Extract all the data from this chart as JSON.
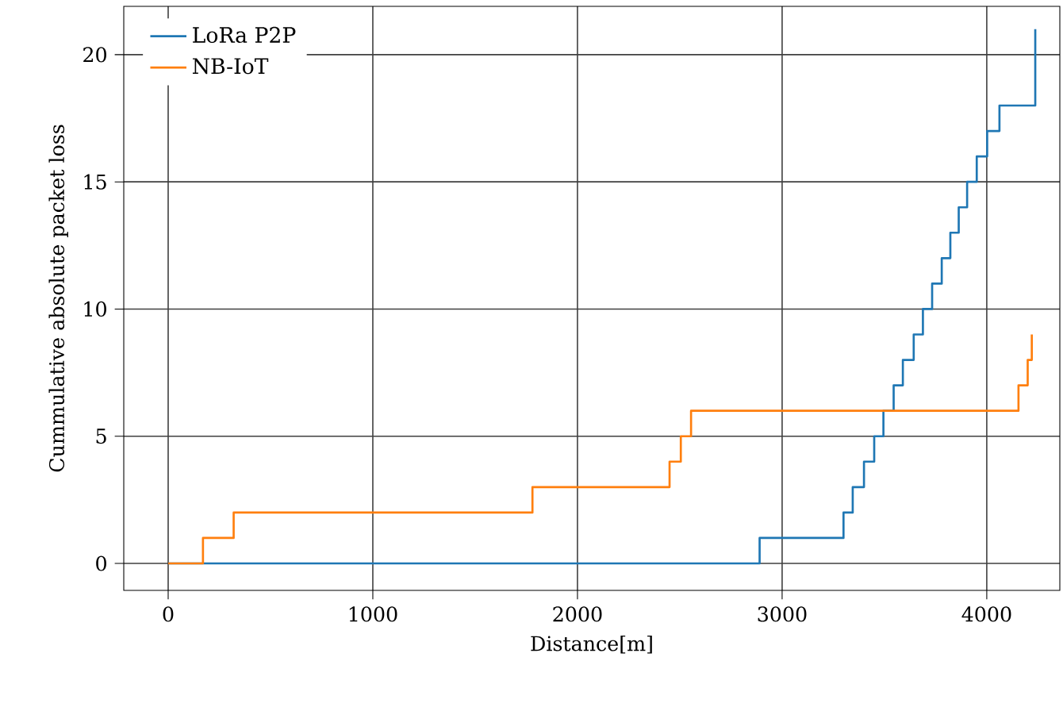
{
  "chart_data": {
    "type": "step",
    "xlabel": "Distance[m]",
    "ylabel": "Cummulative absolute packet loss",
    "xlim": [
      -217,
      4357
    ],
    "ylim": [
      -1.06,
      21.9
    ],
    "xticks": [
      0,
      1000,
      2000,
      3000,
      4000
    ],
    "yticks": [
      0,
      5,
      10,
      15,
      20
    ],
    "grid": true,
    "legend": "top left",
    "series": [
      {
        "name": "LoRa P2P",
        "color": "#1f77b4",
        "x": [
          0,
          2890,
          3300,
          3345,
          3400,
          3450,
          3495,
          3545,
          3590,
          3643,
          3688,
          3733,
          3780,
          3822,
          3863,
          3904,
          3951,
          4002,
          4062,
          4237
        ],
        "values": [
          0,
          1,
          2,
          3,
          4,
          5,
          6,
          7,
          8,
          9,
          10,
          11,
          12,
          13,
          14,
          15,
          16,
          17,
          18,
          21
        ]
      },
      {
        "name": "NB-IoT",
        "color": "#ff7f0e",
        "x": [
          0,
          170,
          320,
          1780,
          2450,
          2505,
          2555,
          4155,
          4200,
          4220
        ],
        "values": [
          0,
          1,
          2,
          3,
          4,
          5,
          6,
          7,
          8,
          9
        ]
      }
    ]
  }
}
